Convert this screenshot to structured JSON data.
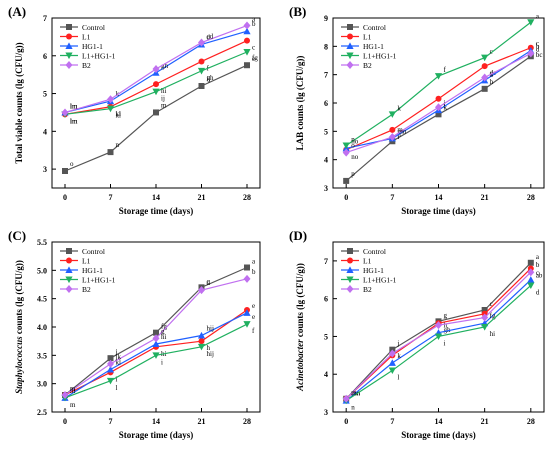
{
  "legend_labels": [
    "Control",
    "L1",
    "HG1-1",
    "L1+HG1-1",
    "B2"
  ],
  "chart_data": [
    {
      "panel": "(A)",
      "type": "line",
      "title": "",
      "xlabel": "Storage time (days)",
      "ylabel": "Total viable counts (lg (CFU/g))",
      "x": [
        0,
        7,
        14,
        21,
        28
      ],
      "xlim": [
        -2,
        30
      ],
      "ylim": [
        2.5,
        7
      ],
      "yticks": [
        3,
        4,
        5,
        6,
        7
      ],
      "grid": false,
      "legend_position": "top-left",
      "series": [
        {
          "name": "Control",
          "color": "#555555",
          "marker": "square",
          "values": [
            2.95,
            3.45,
            4.5,
            5.2,
            5.75
          ],
          "labels": [
            "o",
            "n",
            "m",
            "ij",
            "fg"
          ]
        },
        {
          "name": "L1",
          "color": "#ff2020",
          "marker": "circle",
          "values": [
            4.45,
            4.65,
            5.25,
            5.85,
            6.4
          ],
          "labels": [
            "lm",
            "kl",
            "hi",
            "f",
            "c"
          ]
        },
        {
          "name": "HG1-1",
          "color": "#2060ff",
          "marker": "triangle-up",
          "values": [
            4.5,
            4.8,
            5.55,
            6.3,
            6.65
          ],
          "labels": [
            "lm",
            "k",
            "gh",
            "d",
            "b"
          ]
        },
        {
          "name": "L1+HG1-1",
          "color": "#20b060",
          "marker": "triangle-down",
          "values": [
            4.45,
            4.6,
            5.05,
            5.6,
            6.1
          ],
          "labels": [
            "lm",
            "kl",
            "ij",
            "gh",
            "e"
          ]
        },
        {
          "name": "B2",
          "color": "#c070f0",
          "marker": "diamond",
          "values": [
            4.5,
            4.85,
            5.65,
            6.35,
            6.8
          ],
          "labels": [
            "lm",
            "",
            "",
            "cd",
            "a"
          ]
        }
      ]
    },
    {
      "panel": "(B)",
      "type": "line",
      "title": "",
      "xlabel": "Storage time (days)",
      "ylabel": "LAB counts (lg (CFU/g))",
      "x": [
        0,
        7,
        14,
        21,
        28
      ],
      "xlim": [
        -2,
        30
      ],
      "ylim": [
        3,
        9
      ],
      "yticks": [
        3,
        4,
        5,
        6,
        7,
        8,
        9
      ],
      "grid": false,
      "legend_position": "top-left",
      "series": [
        {
          "name": "Control",
          "color": "#555555",
          "marker": "square",
          "values": [
            3.25,
            4.65,
            5.6,
            6.5,
            7.65
          ],
          "labels": [
            "p",
            "n",
            "k",
            "h",
            "d"
          ]
        },
        {
          "name": "L1",
          "color": "#ff2020",
          "marker": "circle",
          "values": [
            4.35,
            5.05,
            6.15,
            7.3,
            7.95
          ],
          "labels": [
            "no",
            "l",
            "i",
            "de",
            "bc"
          ]
        },
        {
          "name": "HG1-1",
          "color": "#2060ff",
          "marker": "triangle-up",
          "values": [
            4.4,
            4.75,
            5.75,
            6.8,
            7.85
          ],
          "labels": [
            "no",
            "mn",
            "j",
            "g",
            "c"
          ]
        },
        {
          "name": "L1+HG1-1",
          "color": "#20b060",
          "marker": "triangle-down",
          "values": [
            4.5,
            5.6,
            6.95,
            7.6,
            8.85
          ],
          "labels": [
            "n",
            "k",
            "f",
            "c",
            "a"
          ]
        },
        {
          "name": "B2",
          "color": "#c070f0",
          "marker": "diamond",
          "values": [
            4.25,
            4.8,
            5.85,
            6.9,
            7.75
          ],
          "labels": [
            "o",
            "m",
            "",
            "",
            "b"
          ]
        }
      ]
    },
    {
      "panel": "(C)",
      "type": "line",
      "title": "",
      "xlabel": "Storage time (days)",
      "ylabel": "Staphylococcus counts (lg (CFU/g))",
      "x": [
        0,
        7,
        14,
        21,
        28
      ],
      "xlim": [
        -2,
        30
      ],
      "ylim": [
        2.5,
        5.5
      ],
      "yticks": [
        2.5,
        3.0,
        3.5,
        4.0,
        4.5,
        5.0,
        5.5
      ],
      "grid": false,
      "legend_position": "top-left",
      "series": [
        {
          "name": "Control",
          "color": "#555555",
          "marker": "square",
          "values": [
            2.8,
            3.45,
            3.9,
            4.7,
            5.05
          ],
          "labels": [
            "m",
            "j",
            "fg",
            "c",
            "a"
          ]
        },
        {
          "name": "L1",
          "color": "#ff2020",
          "marker": "circle",
          "values": [
            2.8,
            3.2,
            3.65,
            3.75,
            4.3
          ],
          "labels": [
            "m",
            "l",
            "hi",
            "h",
            "e"
          ]
        },
        {
          "name": "HG1-1",
          "color": "#2060ff",
          "marker": "triangle-up",
          "values": [
            2.75,
            3.25,
            3.7,
            3.85,
            4.25
          ],
          "labels": [
            "m",
            "kl",
            "hi",
            "hij",
            "e"
          ]
        },
        {
          "name": "L1+HG1-1",
          "color": "#20b060",
          "marker": "triangle-down",
          "values": [
            2.75,
            3.05,
            3.5,
            3.65,
            4.05
          ],
          "labels": [
            "m",
            "l",
            "i",
            "hij",
            "f"
          ]
        },
        {
          "name": "B2",
          "color": "#c070f0",
          "marker": "diamond",
          "values": [
            2.8,
            3.35,
            3.8,
            4.65,
            4.85
          ],
          "labels": [
            "m",
            "jk",
            "g",
            "d",
            "b"
          ]
        }
      ]
    },
    {
      "panel": "(D)",
      "type": "line",
      "title": "",
      "xlabel": "Storage time (days)",
      "ylabel": "Acinetobacter counts (lg (CFU/g))",
      "x": [
        0,
        7,
        14,
        21,
        28
      ],
      "xlim": [
        -2,
        30
      ],
      "ylim": [
        3,
        7.5
      ],
      "yticks": [
        3,
        4,
        5,
        6,
        7
      ],
      "grid": false,
      "legend_position": "top-left",
      "series": [
        {
          "name": "Control",
          "color": "#555555",
          "marker": "square",
          "values": [
            3.35,
            4.65,
            5.4,
            5.7,
            6.95
          ],
          "labels": [
            "mn",
            "j",
            "g",
            "c",
            "a"
          ]
        },
        {
          "name": "L1",
          "color": "#ff2020",
          "marker": "circle",
          "values": [
            3.35,
            4.5,
            5.35,
            5.6,
            6.8
          ],
          "labels": [
            "m",
            "",
            "gh",
            "",
            "ab"
          ]
        },
        {
          "name": "HG1-1",
          "color": "#2060ff",
          "marker": "triangle-up",
          "values": [
            3.3,
            4.3,
            5.1,
            5.35,
            6.5
          ],
          "labels": [
            "mn",
            "k",
            "h",
            "fg",
            "c"
          ]
        },
        {
          "name": "L1+HG1-1",
          "color": "#20b060",
          "marker": "triangle-down",
          "values": [
            3.3,
            4.1,
            5.0,
            5.25,
            6.35
          ],
          "labels": [
            "n",
            "l",
            "i",
            "hi",
            "d"
          ]
        },
        {
          "name": "B2",
          "color": "#c070f0",
          "marker": "diamond",
          "values": [
            3.35,
            4.55,
            5.3,
            5.5,
            6.7
          ],
          "labels": [
            "m",
            "",
            "",
            "",
            "b"
          ]
        }
      ]
    }
  ]
}
